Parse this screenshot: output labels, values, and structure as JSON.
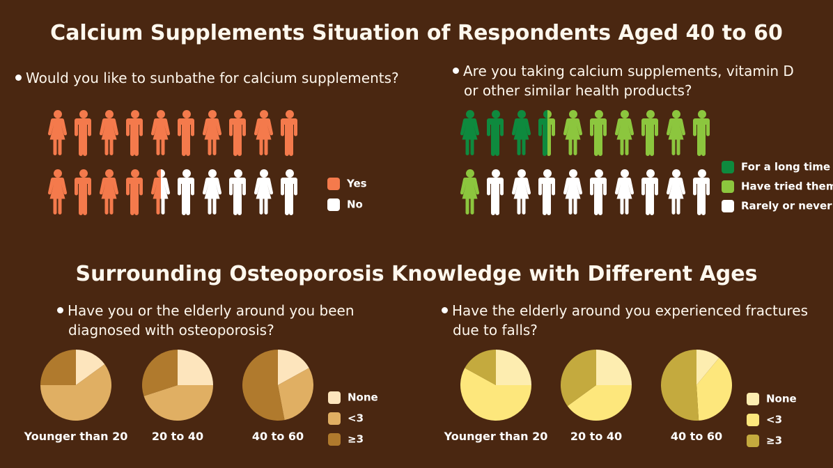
{
  "titles": {
    "calcium": "Calcium Supplements Situation of Respondents Aged 40 to 60",
    "osteoporosis": "Surrounding Osteoporosis Knowledge with Different Ages"
  },
  "questions": {
    "sunbathe": "Would you like to sunbathe for calcium supplements?",
    "supplements": [
      "Are you taking calcium supplements, vitamin D",
      "or other similar health products?"
    ],
    "diagnosed": [
      "Have you or the elderly around you been",
      "diagnosed with osteoporosis?"
    ],
    "fractures": [
      "Have the elderly around you experienced fractures",
      "due to falls?"
    ]
  },
  "colors": {
    "background": "#4a2711",
    "yes": "#f47a4c",
    "no": "#ffffff",
    "long_time": "#0e8a3e",
    "tried": "#8cc63e",
    "rarely": "#ffffff",
    "pie1_none": "#fde5bd",
    "pie1_lt3": "#e0af63",
    "pie1_ge3": "#b07a2d",
    "pie2_none": "#fdedb0",
    "pie2_lt3": "#fde77c",
    "pie2_ge3": "#c4aa3e"
  },
  "chart_data": [
    {
      "type": "pictogram",
      "title": "Would you like to sunbathe for calcium supplements?",
      "total_icons": 20,
      "categories": [
        "Yes",
        "No"
      ],
      "values": [
        14.5,
        5.5
      ],
      "legend": [
        "Yes",
        "No"
      ]
    },
    {
      "type": "pictogram",
      "title": "Are you taking calcium supplements, vitamin D or other similar health products?",
      "total_icons": 20,
      "categories": [
        "For a long time",
        "Have tried them",
        "Rarely or never"
      ],
      "values": [
        3.5,
        7.5,
        9
      ],
      "legend": [
        "For a long time",
        "Have tried them",
        "Rarely or never"
      ]
    },
    {
      "type": "pie",
      "title": "Have you or the elderly around you been diagnosed with osteoporosis?",
      "legend": [
        "None",
        "<3",
        "≥3"
      ],
      "pies": [
        {
          "label": "Younger than 20",
          "values": [
            15,
            60,
            25
          ]
        },
        {
          "label": "20 to 40",
          "values": [
            25,
            45,
            30
          ]
        },
        {
          "label": "40 to 60",
          "values": [
            17,
            30,
            53
          ]
        }
      ]
    },
    {
      "type": "pie",
      "title": "Have the elderly around you experienced fractures due to falls?",
      "legend": [
        "None",
        "<3",
        "≥3"
      ],
      "pies": [
        {
          "label": "Younger than 20",
          "values": [
            25,
            58,
            17
          ]
        },
        {
          "label": "20 to 40",
          "values": [
            25,
            40,
            35
          ]
        },
        {
          "label": "40 to 60",
          "values": [
            11,
            38,
            51
          ]
        }
      ]
    }
  ]
}
